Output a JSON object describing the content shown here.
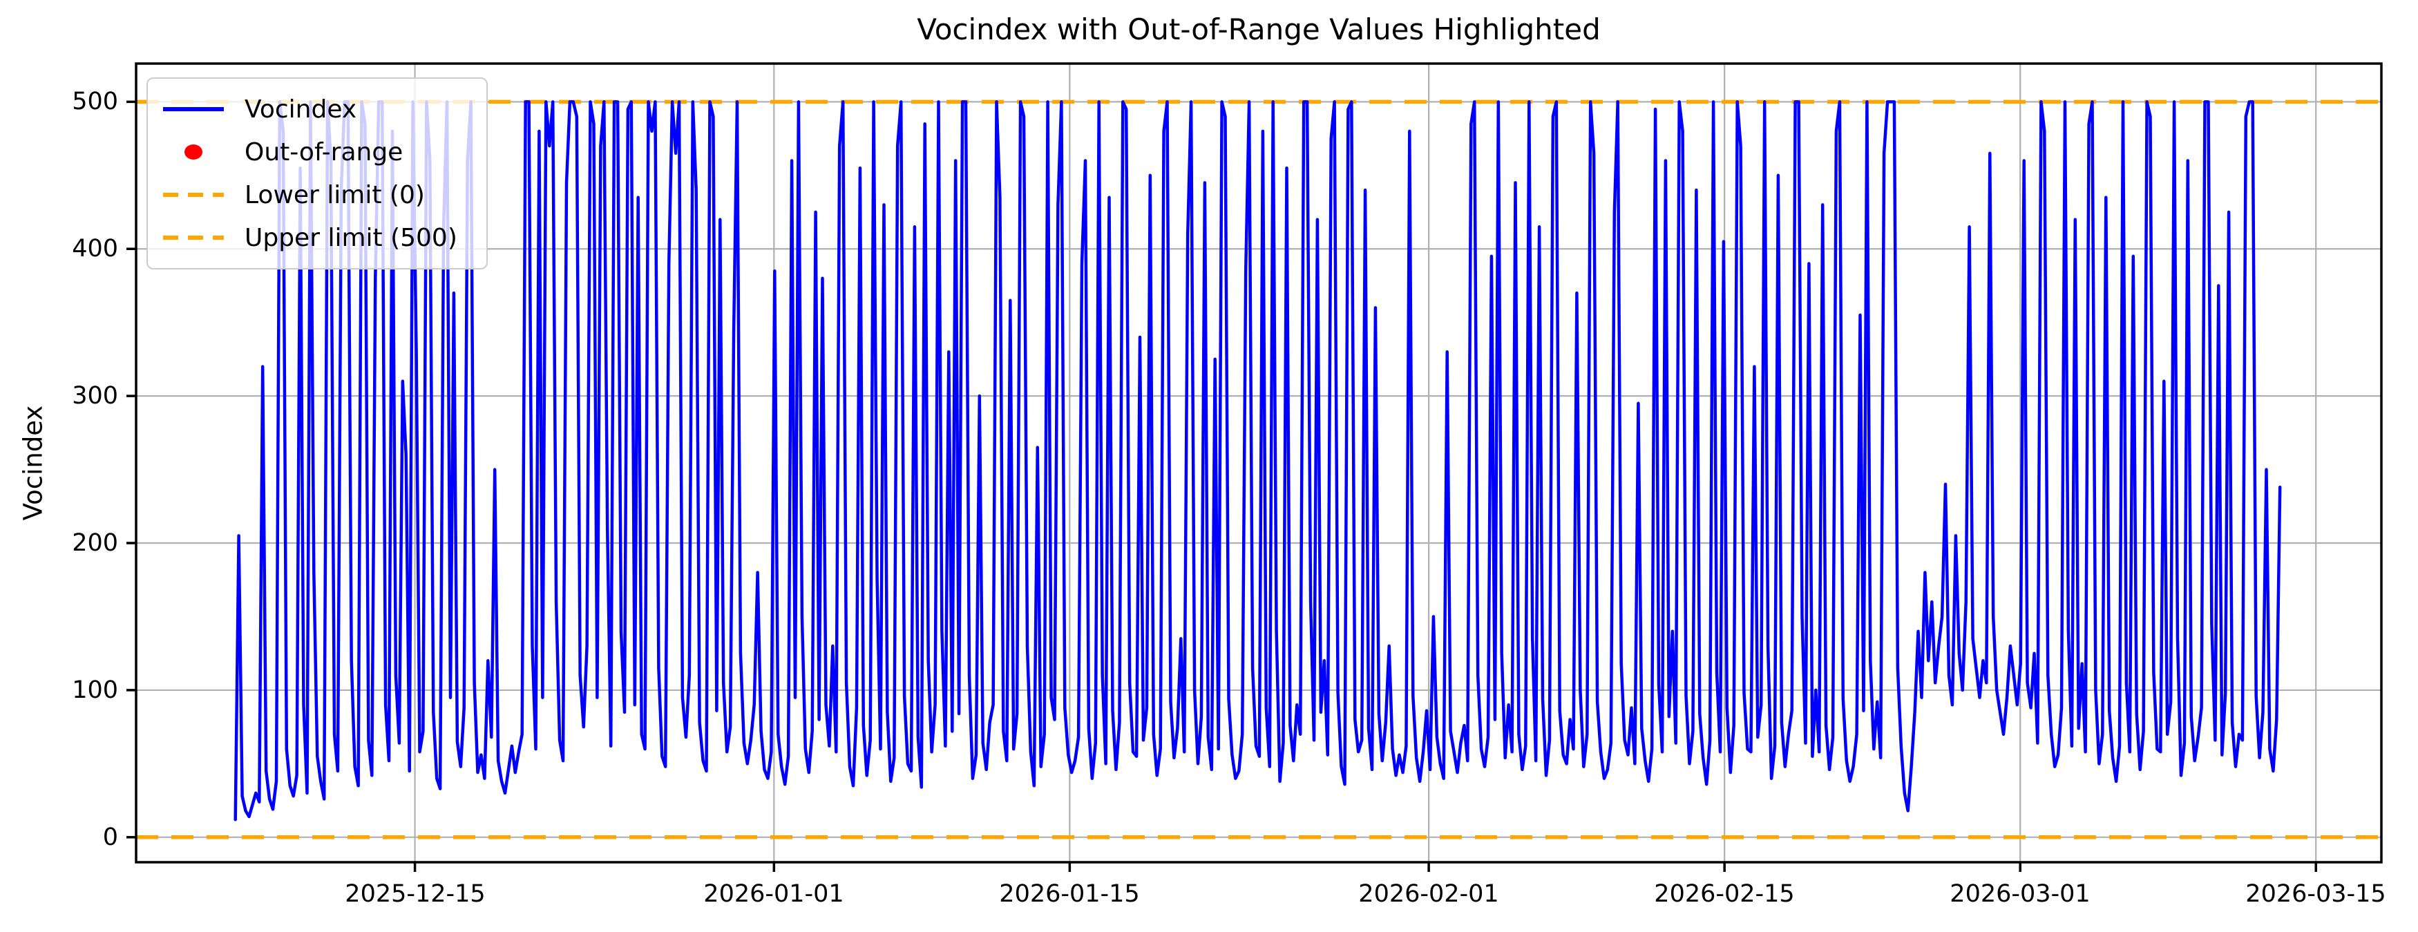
{
  "chart_data": {
    "type": "line",
    "title": "Vocindex with Out-of-Range Values Highlighted",
    "ylabel": "Vocindex",
    "grid": true,
    "grid_color": "#b0b0b0",
    "background": "#ffffff",
    "x_axis": {
      "epoch_day0": "2025-12-01",
      "lim_days": [
        0.8,
        107.1
      ],
      "ticks": [
        {
          "day": 14,
          "label": "2025-12-15"
        },
        {
          "day": 31,
          "label": "2026-01-01"
        },
        {
          "day": 45,
          "label": "2026-01-15"
        },
        {
          "day": 62,
          "label": "2026-02-01"
        },
        {
          "day": 76,
          "label": "2026-02-15"
        },
        {
          "day": 90,
          "label": "2026-03-01"
        },
        {
          "day": 104,
          "label": "2026-03-15"
        }
      ]
    },
    "y_axis": {
      "lim": [
        -17,
        526
      ],
      "ticks": [
        0,
        100,
        200,
        300,
        400,
        500
      ]
    },
    "limits": {
      "color": "#ffa500",
      "lower": {
        "label": "Lower limit (0)",
        "value": 0
      },
      "upper": {
        "label": "Upper limit (500)",
        "value": 500
      }
    },
    "out_of_range": {
      "name": "Out-of-range",
      "color": "#ff0000",
      "points": []
    },
    "series": [
      {
        "name": "Vocindex",
        "color": "#0000ff",
        "start_day": 5.5,
        "end_day": 102.3,
        "values": [
          12,
          205,
          28,
          18,
          14,
          22,
          30,
          24,
          320,
          45,
          26,
          19,
          38,
          500,
          480,
          60,
          35,
          28,
          42,
          455,
          90,
          30,
          500,
          180,
          55,
          38,
          26,
          500,
          460,
          70,
          45,
          440,
          500,
          500,
          120,
          48,
          35,
          500,
          485,
          66,
          42,
          380,
          500,
          500,
          90,
          52,
          480,
          110,
          64,
          310,
          260,
          45,
          500,
          330,
          58,
          72,
          500,
          460,
          85,
          40,
          33,
          415,
          500,
          95,
          370,
          65,
          48,
          88,
          460,
          500,
          105,
          44,
          56,
          40,
          120,
          68,
          250,
          52,
          38,
          30,
          46,
          62,
          44,
          58,
          70,
          500,
          500,
          130,
          60,
          480,
          95,
          500,
          470,
          500,
          160,
          66,
          52,
          445,
          500,
          500,
          490,
          110,
          75,
          130,
          500,
          485,
          95,
          470,
          500,
          210,
          62,
          500,
          500,
          140,
          85,
          495,
          500,
          90,
          435,
          70,
          60,
          500,
          480,
          500,
          115,
          55,
          48,
          390,
          500,
          465,
          500,
          95,
          68,
          110,
          500,
          440,
          78,
          52,
          45,
          500,
          490,
          86,
          420,
          105,
          58,
          75,
          345,
          500,
          125,
          64,
          50,
          66,
          90,
          180,
          72,
          46,
          40,
          58,
          385,
          70,
          48,
          36,
          55,
          460,
          95,
          500,
          150,
          60,
          44,
          72,
          425,
          80,
          380,
          90,
          62,
          130,
          58,
          470,
          500,
          105,
          48,
          35,
          88,
          455,
          76,
          42,
          66,
          500,
          175,
          60,
          430,
          85,
          38,
          54,
          470,
          500,
          96,
          50,
          45,
          415,
          68,
          34,
          485,
          120,
          58,
          90,
          500,
          140,
          62,
          330,
          72,
          460,
          84,
          500,
          500,
          110,
          40,
          56,
          300,
          64,
          46,
          78,
          90,
          500,
          435,
          72,
          52,
          365,
          60,
          84,
          500,
          490,
          130,
          58,
          35,
          265,
          48,
          70,
          500,
          95,
          80,
          430,
          500,
          88,
          56,
          44,
          52,
          68,
          390,
          460,
          74,
          40,
          64,
          500,
          110,
          50,
          435,
          86,
          46,
          78,
          500,
          495,
          105,
          58,
          55,
          340,
          66,
          88,
          450,
          70,
          42,
          60,
          480,
          500,
          92,
          54,
          74,
          135,
          58,
          410,
          500,
          100,
          50,
          82,
          445,
          68,
          46,
          325,
          60,
          500,
          490,
          94,
          56,
          40,
          45,
          70,
          385,
          500,
          115,
          62,
          55,
          480,
          88,
          48,
          500,
          140,
          38,
          64,
          455,
          76,
          52,
          90,
          70,
          500,
          500,
          160,
          66,
          420,
          85,
          120,
          56,
          475,
          500,
          98,
          48,
          36,
          495,
          500,
          80,
          58,
          66,
          440,
          74,
          46,
          360,
          84,
          52,
          78,
          130,
          60,
          42,
          56,
          44,
          62,
          480,
          96,
          54,
          38,
          58,
          86,
          46,
          150,
          68,
          50,
          40,
          330,
          72,
          58,
          44,
          64,
          76,
          52,
          485,
          500,
          110,
          60,
          48,
          68,
          395,
          80,
          500,
          125,
          54,
          90,
          58,
          445,
          70,
          46,
          62,
          500,
          135,
          52,
          415,
          94,
          42,
          66,
          490,
          500,
          86,
          56,
          50,
          80,
          60,
          370,
          100,
          48,
          70,
          500,
          465,
          92,
          58,
          40,
          46,
          64,
          425,
          500,
          118,
          66,
          56,
          88,
          50,
          295,
          74,
          52,
          38,
          60,
          495,
          104,
          58,
          460,
          82,
          140,
          64,
          500,
          480,
          96,
          50,
          72,
          440,
          84,
          54,
          36,
          66,
          500,
          112,
          58,
          405,
          88,
          44,
          76,
          500,
          470,
          98,
          60,
          58,
          320,
          68,
          90,
          500,
          130,
          40,
          62,
          450,
          78,
          48,
          70,
          86,
          500,
          500,
          150,
          64,
          390,
          55,
          100,
          58,
          430,
          76,
          46,
          68,
          480,
          500,
          94,
          52,
          38,
          48,
          70,
          355,
          86,
          500,
          120,
          60,
          92,
          54,
          465,
          500,
          500,
          500,
          115,
          62,
          30,
          18,
          48,
          85,
          140,
          95,
          180,
          120,
          160,
          105,
          130,
          150,
          240,
          110,
          90,
          205,
          125,
          100,
          160,
          415,
          135,
          115,
          95,
          120,
          105,
          465,
          150,
          100,
          85,
          70,
          95,
          130,
          110,
          90,
          118,
          460,
          105,
          88,
          125,
          64,
          500,
          480,
          110,
          70,
          48,
          56,
          88,
          500,
          140,
          62,
          420,
          74,
          118,
          58,
          485,
          500,
          100,
          50,
          70,
          435,
          86,
          54,
          38,
          62,
          500,
          105,
          58,
          395,
          84,
          46,
          72,
          500,
          490,
          112,
          60,
          58,
          310,
          70,
          92,
          500,
          135,
          42,
          64,
          460,
          82,
          52,
          68,
          88,
          500,
          500,
          145,
          66,
          375,
          56,
          98,
          425,
          78,
          48,
          70,
          66,
          490,
          500,
          500,
          96,
          54,
          85,
          250,
          60,
          45,
          80,
          238
        ]
      }
    ]
  },
  "legend": {
    "items": [
      {
        "label": "Vocindex",
        "type": "line",
        "color": "#0000ff"
      },
      {
        "label": "Out-of-range",
        "type": "dot",
        "color": "#ff0000"
      },
      {
        "label": "Lower limit (0)",
        "type": "dashed",
        "color": "#ffa500"
      },
      {
        "label": "Upper limit (500)",
        "type": "dashed",
        "color": "#ffa500"
      }
    ]
  }
}
